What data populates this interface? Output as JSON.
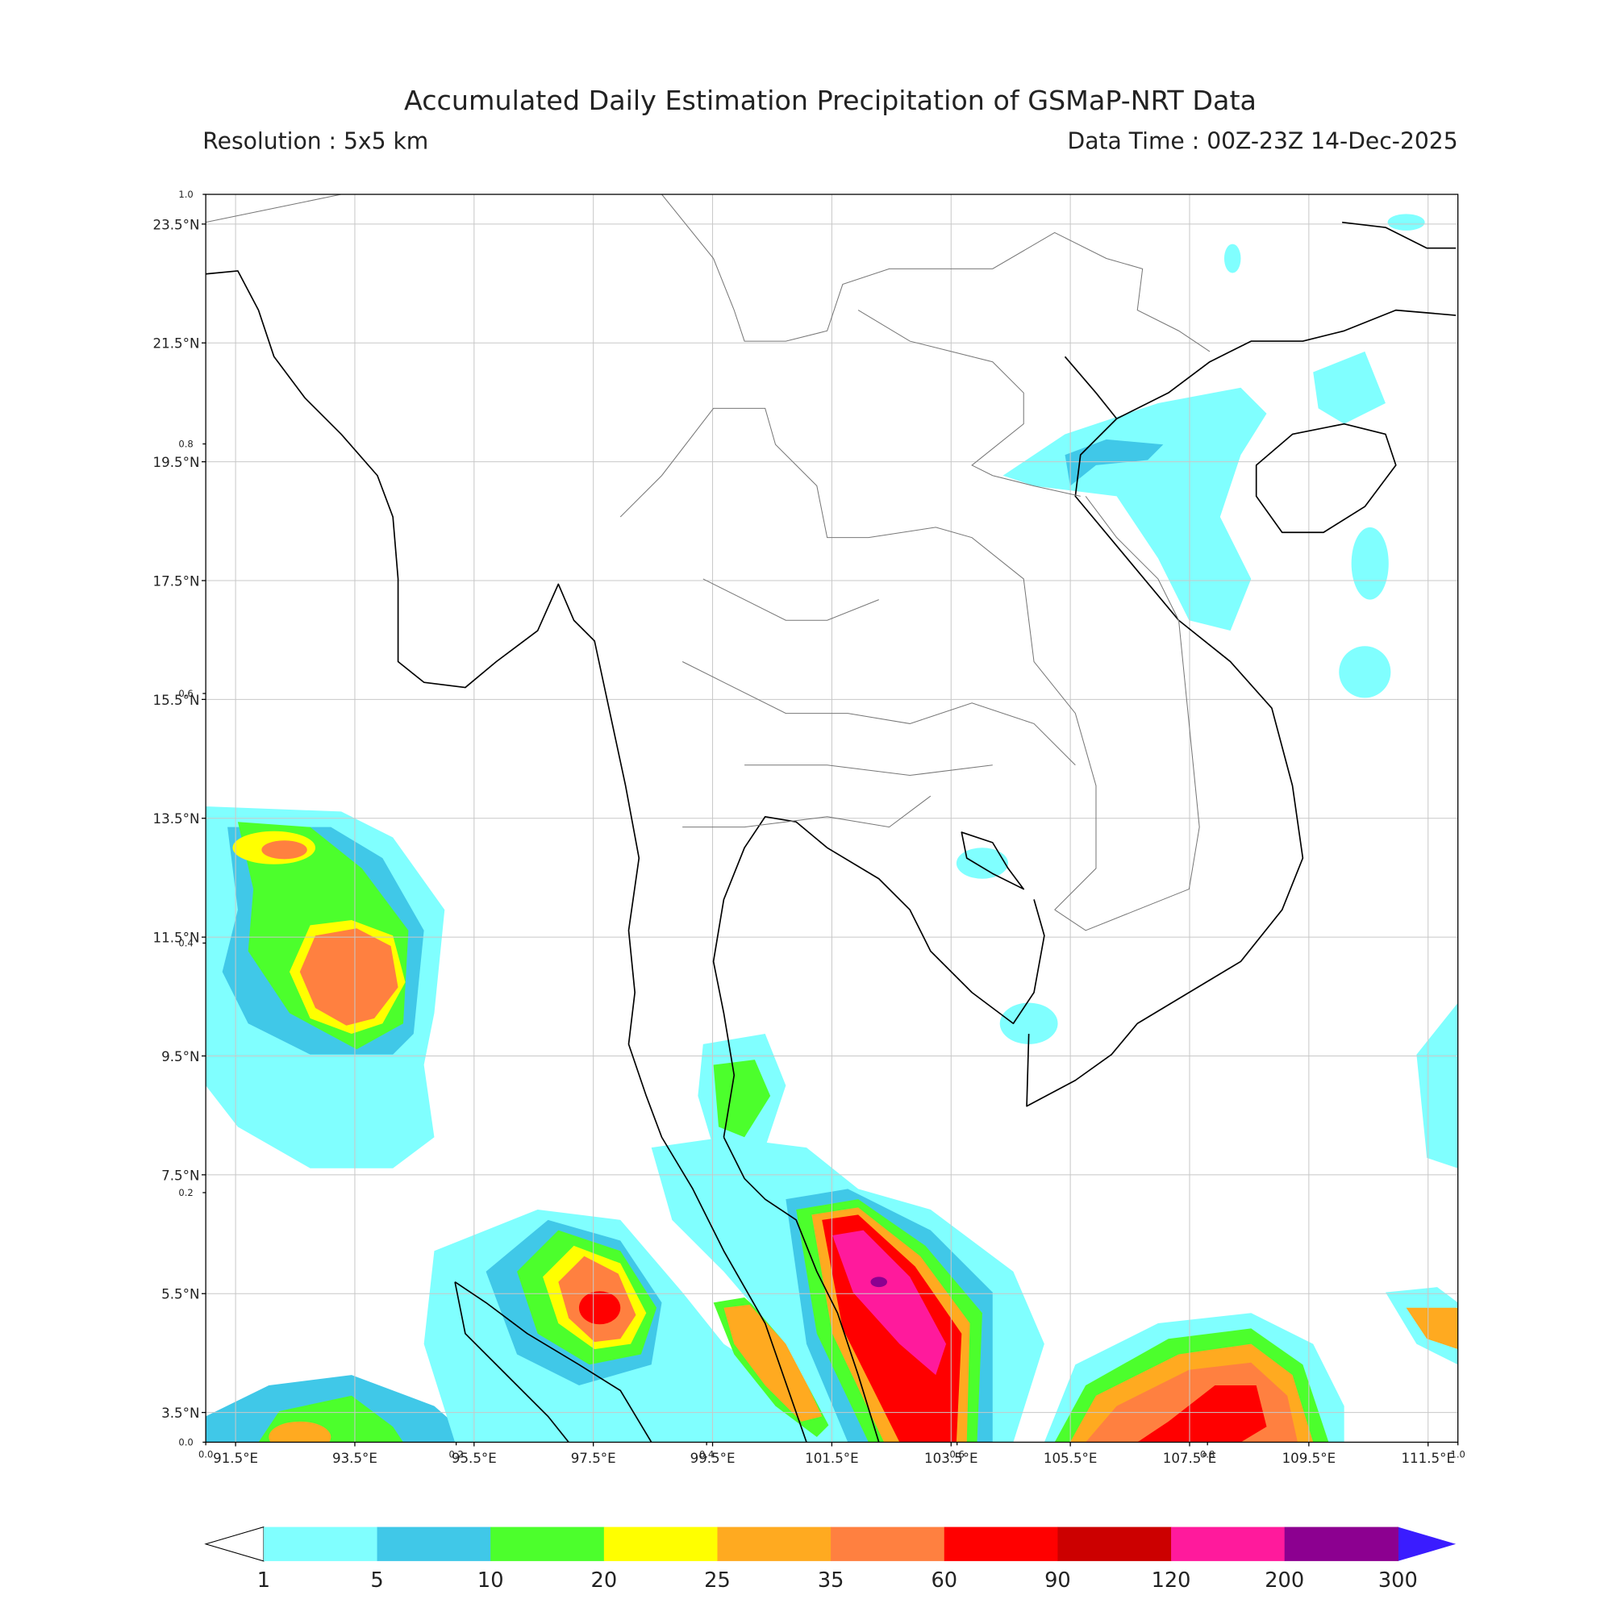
{
  "map": {
    "title": "Accumulated Daily Estimation Precipitation of GSMaP-NRT Data",
    "resolution": "Resolution : 5x5 km",
    "data_time": "Data Time : 00Z-23Z 14-Dec-2025",
    "xlim": [
      91,
      112
    ],
    "ylim": [
      3,
      24
    ],
    "grid": true,
    "xticks": [
      {
        "value": 91.5,
        "label": "91.5°E"
      },
      {
        "value": 93.5,
        "label": "93.5°E"
      },
      {
        "value": 95.5,
        "label": "95.5°E"
      },
      {
        "value": 97.5,
        "label": "97.5°E"
      },
      {
        "value": 99.5,
        "label": "99.5°E"
      },
      {
        "value": 101.5,
        "label": "101.5°E"
      },
      {
        "value": 103.5,
        "label": "103.5°E"
      },
      {
        "value": 105.5,
        "label": "105.5°E"
      },
      {
        "value": 107.5,
        "label": "107.5°E"
      },
      {
        "value": 109.5,
        "label": "109.5°E"
      },
      {
        "value": 111.5,
        "label": "111.5°E"
      }
    ],
    "yticks": [
      {
        "value": 3.5,
        "label": "3.5°N"
      },
      {
        "value": 5.5,
        "label": "5.5°N"
      },
      {
        "value": 7.5,
        "label": "7.5°N"
      },
      {
        "value": 9.5,
        "label": "9.5°N"
      },
      {
        "value": 11.5,
        "label": "11.5°N"
      },
      {
        "value": 13.5,
        "label": "13.5°N"
      },
      {
        "value": 15.5,
        "label": "15.5°N"
      },
      {
        "value": 17.5,
        "label": "17.5°N"
      },
      {
        "value": 19.5,
        "label": "19.5°N"
      },
      {
        "value": 21.5,
        "label": "21.5°N"
      },
      {
        "value": 23.5,
        "label": "23.5°N"
      }
    ],
    "frame_lim": [
      0,
      1
    ],
    "frame_xticks": [
      {
        "value": 0,
        "label": "0.0"
      },
      {
        "value": 0.2,
        "label": "0.2"
      },
      {
        "value": 0.4,
        "label": "0.4"
      },
      {
        "value": 0.6,
        "label": "0.6"
      },
      {
        "value": 0.8,
        "label": "0.8"
      },
      {
        "value": 1,
        "label": "1.0"
      }
    ],
    "frame_yticks": [
      {
        "value": 0,
        "label": "0.0"
      },
      {
        "value": 0.2,
        "label": "0.2"
      },
      {
        "value": 0.4,
        "label": "0.4"
      },
      {
        "value": 0.6,
        "label": "0.6"
      },
      {
        "value": 0.8,
        "label": "0.8"
      },
      {
        "value": 1,
        "label": "1.0"
      }
    ],
    "colorbar": {
      "levels": [
        1,
        5,
        10,
        20,
        25,
        35,
        60,
        90,
        120,
        200,
        300
      ],
      "colors": [
        "#80ffff",
        "#40c8e8",
        "#4cff2c",
        "#ffff00",
        "#ffaa20",
        "#ff8040",
        "#ff0000",
        "#cc0000",
        "#ff1a9c",
        "#8c0090"
      ],
      "under_color": "#ffffff",
      "over_color": "#3a1cff"
    }
  }
}
